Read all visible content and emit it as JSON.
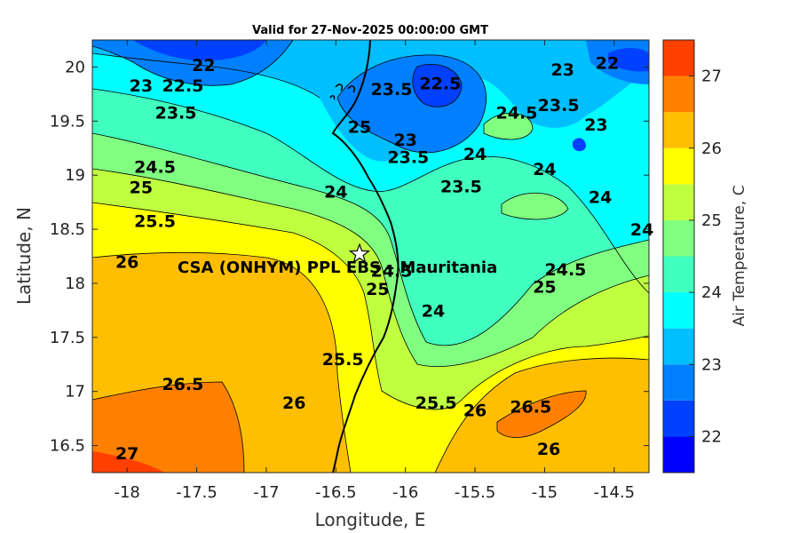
{
  "chart_data": {
    "type": "heatmap",
    "title": "Valid for 27-Nov-2025 00:00:00 GMT",
    "xlabel": "Longitude, E",
    "ylabel": "Latitude, N",
    "xlim": [
      -18.25,
      -14.25
    ],
    "ylim": [
      16.25,
      20.25
    ],
    "xticks": [
      "-18",
      "-17.5",
      "-17",
      "-16.5",
      "-16",
      "-15.5",
      "-15",
      "-14.5"
    ],
    "xtick_values": [
      -18,
      -17.5,
      -17,
      -16.5,
      -16,
      -15.5,
      -15,
      -14.5
    ],
    "yticks": [
      "16.5",
      "17",
      "17.5",
      "18",
      "18.5",
      "19",
      "19.5",
      "20"
    ],
    "ytick_values": [
      16.5,
      17,
      17.5,
      18,
      18.5,
      19,
      19.5,
      20
    ],
    "colorbar": {
      "label": "Air Temperature, C",
      "range": [
        21.5,
        27.5
      ],
      "ticks": [
        "22",
        "23",
        "24",
        "25",
        "26",
        "27"
      ],
      "tick_values": [
        22,
        23,
        24,
        25,
        26,
        27
      ],
      "levels": [
        21.5,
        22,
        22.5,
        23,
        23.5,
        24,
        24.5,
        25,
        25.5,
        26,
        26.5,
        27,
        27.5
      ],
      "colors": [
        "#0000ff",
        "#0040ff",
        "#0080ff",
        "#00bfff",
        "#00ffff",
        "#40ffbf",
        "#80ff80",
        "#bfff40",
        "#ffff00",
        "#ffbf00",
        "#ff8000",
        "#ff4000"
      ]
    },
    "station": {
      "name": "CSA (ONHYM) PPL EBS  – Mauritania",
      "lon": -16.33,
      "lat": 18.27
    },
    "contour_labels": [
      {
        "text": "22",
        "lon": -17.45,
        "lat": 20.02
      },
      {
        "text": "22.5",
        "lon": -17.6,
        "lat": 19.83
      },
      {
        "text": "23",
        "lon": -17.9,
        "lat": 19.83
      },
      {
        "text": "23.5",
        "lon": -17.65,
        "lat": 19.58
      },
      {
        "text": "23.5",
        "lon": -16.1,
        "lat": 19.8
      },
      {
        "text": "22.5",
        "lon": -15.75,
        "lat": 19.85
      },
      {
        "text": "25",
        "lon": -16.33,
        "lat": 19.45
      },
      {
        "text": "24.5",
        "lon": -15.2,
        "lat": 19.58
      },
      {
        "text": "23.5",
        "lon": -14.9,
        "lat": 19.65
      },
      {
        "text": "23",
        "lon": -14.87,
        "lat": 19.98
      },
      {
        "text": "22",
        "lon": -14.55,
        "lat": 20.04
      },
      {
        "text": "23",
        "lon": -14.63,
        "lat": 19.47
      },
      {
        "text": "23",
        "lon": -16.0,
        "lat": 19.33
      },
      {
        "text": "23.5",
        "lon": -15.98,
        "lat": 19.17
      },
      {
        "text": "24",
        "lon": -15.5,
        "lat": 19.2
      },
      {
        "text": "24",
        "lon": -15.0,
        "lat": 19.06
      },
      {
        "text": "24.5",
        "lon": -17.8,
        "lat": 19.08
      },
      {
        "text": "25",
        "lon": -17.9,
        "lat": 18.89
      },
      {
        "text": "24",
        "lon": -16.5,
        "lat": 18.85
      },
      {
        "text": "23.5",
        "lon": -15.6,
        "lat": 18.9
      },
      {
        "text": "24",
        "lon": -14.6,
        "lat": 18.8
      },
      {
        "text": "25.5",
        "lon": -17.8,
        "lat": 18.58
      },
      {
        "text": "24",
        "lon": -14.3,
        "lat": 18.5
      },
      {
        "text": "26",
        "lon": -18.0,
        "lat": 18.2
      },
      {
        "text": "24.5",
        "lon": -16.1,
        "lat": 18.12
      },
      {
        "text": "24.5",
        "lon": -14.85,
        "lat": 18.13
      },
      {
        "text": "25",
        "lon": -16.2,
        "lat": 17.95
      },
      {
        "text": "25",
        "lon": -15.0,
        "lat": 17.97
      },
      {
        "text": "24",
        "lon": -15.8,
        "lat": 17.75
      },
      {
        "text": "25.5",
        "lon": -16.45,
        "lat": 17.3
      },
      {
        "text": "26.5",
        "lon": -17.6,
        "lat": 17.07
      },
      {
        "text": "26",
        "lon": -16.8,
        "lat": 16.9
      },
      {
        "text": "25.5",
        "lon": -15.78,
        "lat": 16.9
      },
      {
        "text": "26",
        "lon": -15.5,
        "lat": 16.83
      },
      {
        "text": "26.5",
        "lon": -15.1,
        "lat": 16.86
      },
      {
        "text": "26",
        "lon": -14.97,
        "lat": 16.47
      },
      {
        "text": "27",
        "lon": -18.0,
        "lat": 16.43
      }
    ]
  }
}
